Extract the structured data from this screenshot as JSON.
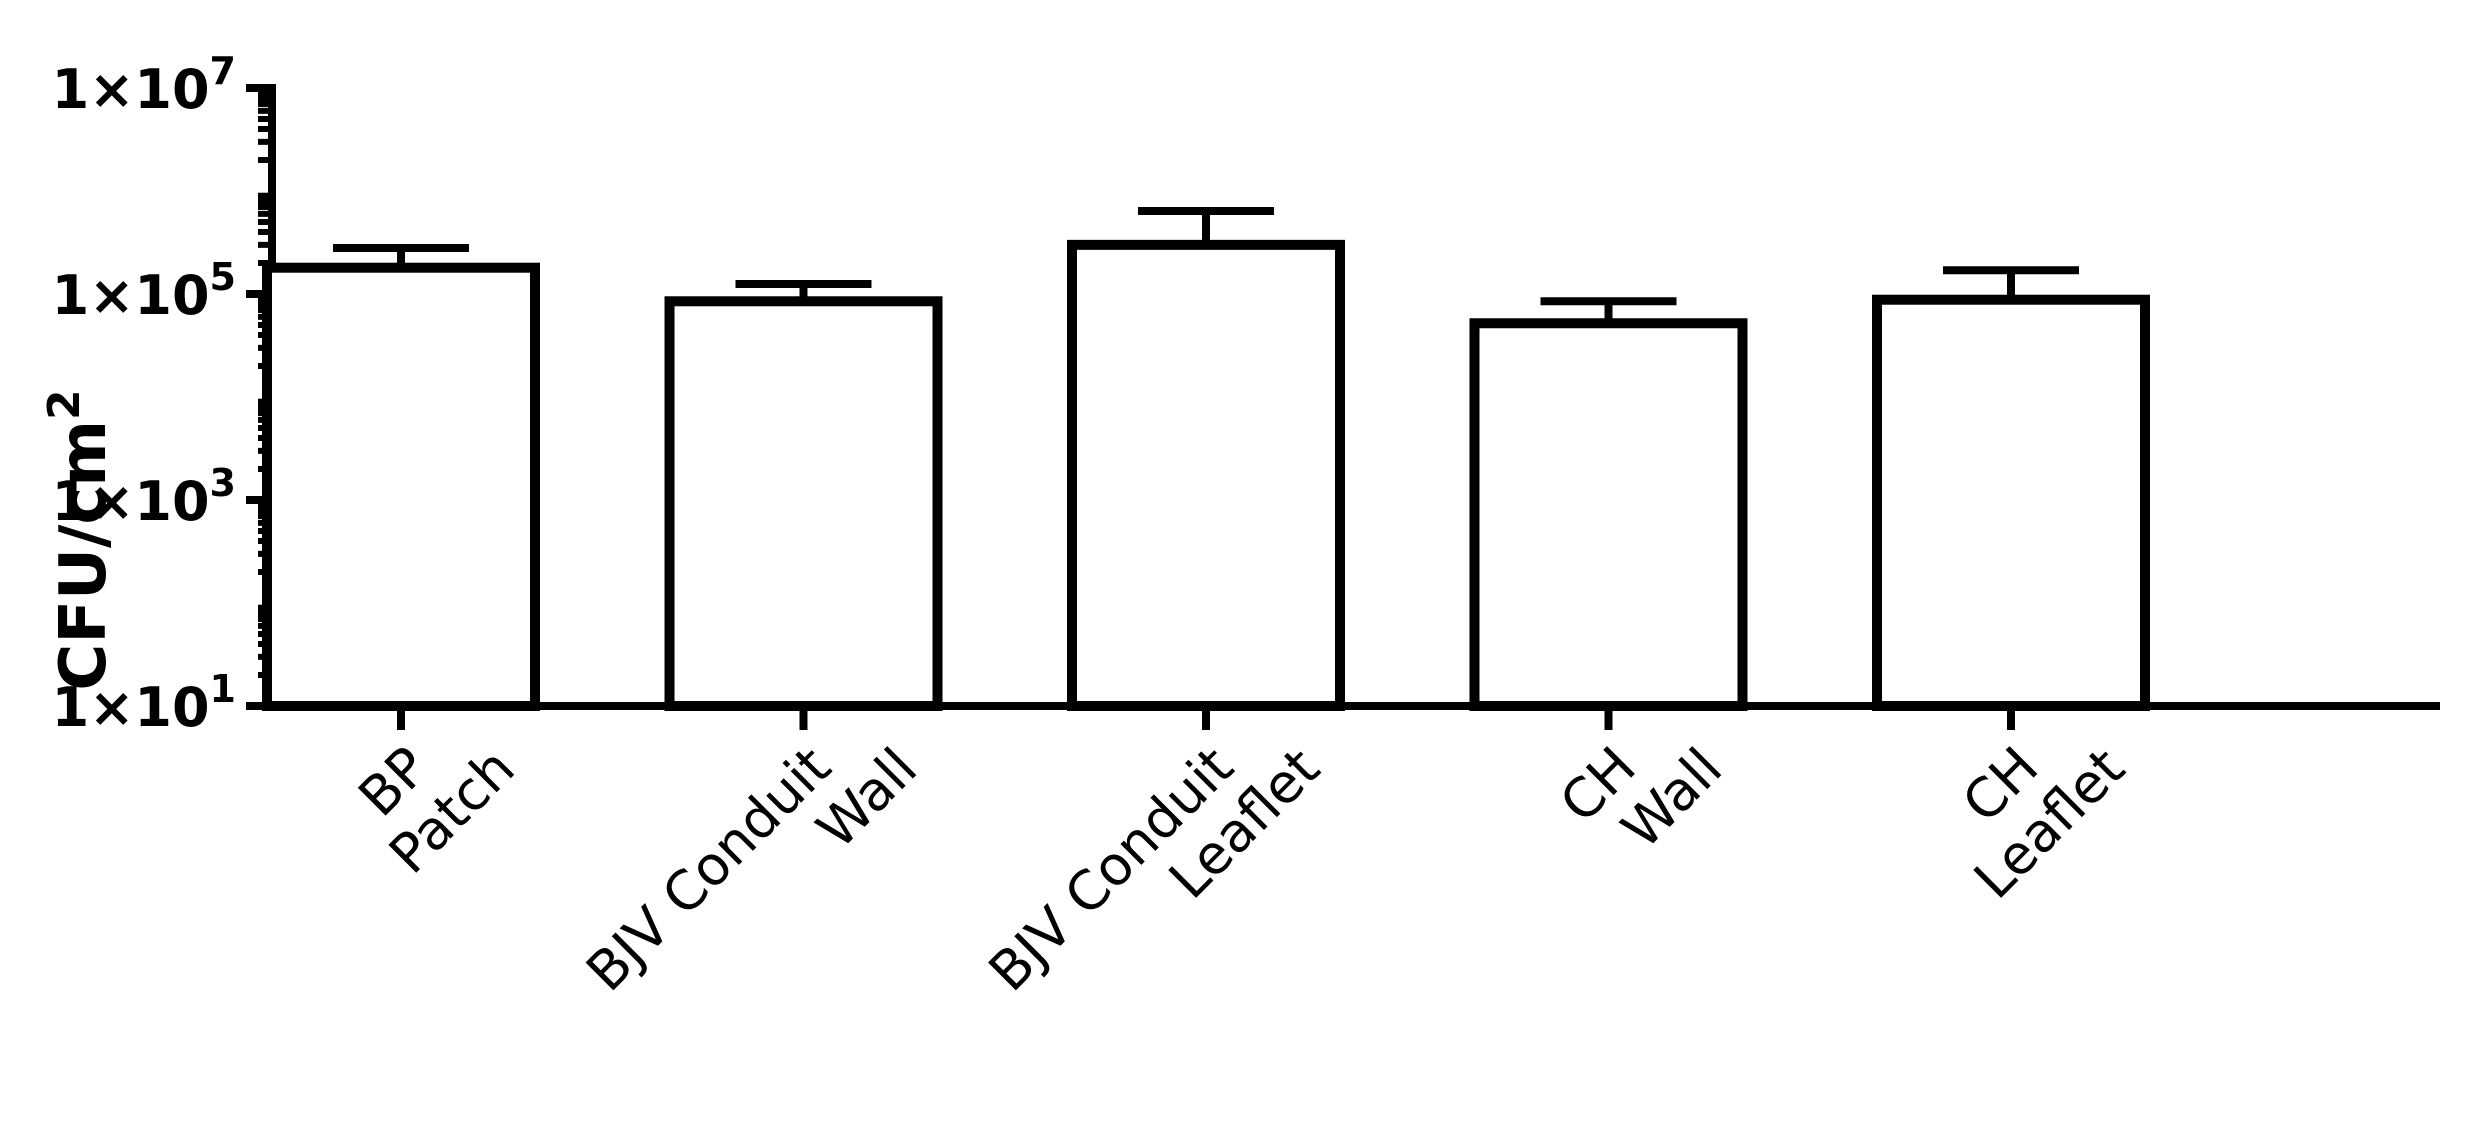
{
  "chart_data": {
    "type": "bar",
    "title": "",
    "xlabel": "",
    "ylabel": "CFU/cm",
    "ylabel_superscript": "2",
    "y_scale": "log",
    "ylim": [
      10,
      10000000
    ],
    "grid": false,
    "legend": "none",
    "bar_fill": "#ffffff",
    "bar_stroke": "#000000",
    "yticks": [
      {
        "base": "1×10",
        "exp": "1",
        "value": 10
      },
      {
        "base": "1×10",
        "exp": "3",
        "value": 1000
      },
      {
        "base": "1×10",
        "exp": "5",
        "value": 100000
      },
      {
        "base": "1×10",
        "exp": "7",
        "value": 10000000
      }
    ],
    "categories": [
      {
        "lines": [
          "BP",
          "Patch"
        ]
      },
      {
        "lines": [
          "BJV Conduit",
          "Wall"
        ]
      },
      {
        "lines": [
          "BJV Conduit",
          "Leaflet"
        ]
      },
      {
        "lines": [
          "CH",
          "Wall"
        ]
      },
      {
        "lines": [
          "CH",
          "Leaflet"
        ]
      }
    ],
    "values": [
      180000,
      85000,
      300000,
      52000,
      88000
    ],
    "error_upper": [
      280000,
      125000,
      640000,
      85000,
      170000
    ]
  }
}
